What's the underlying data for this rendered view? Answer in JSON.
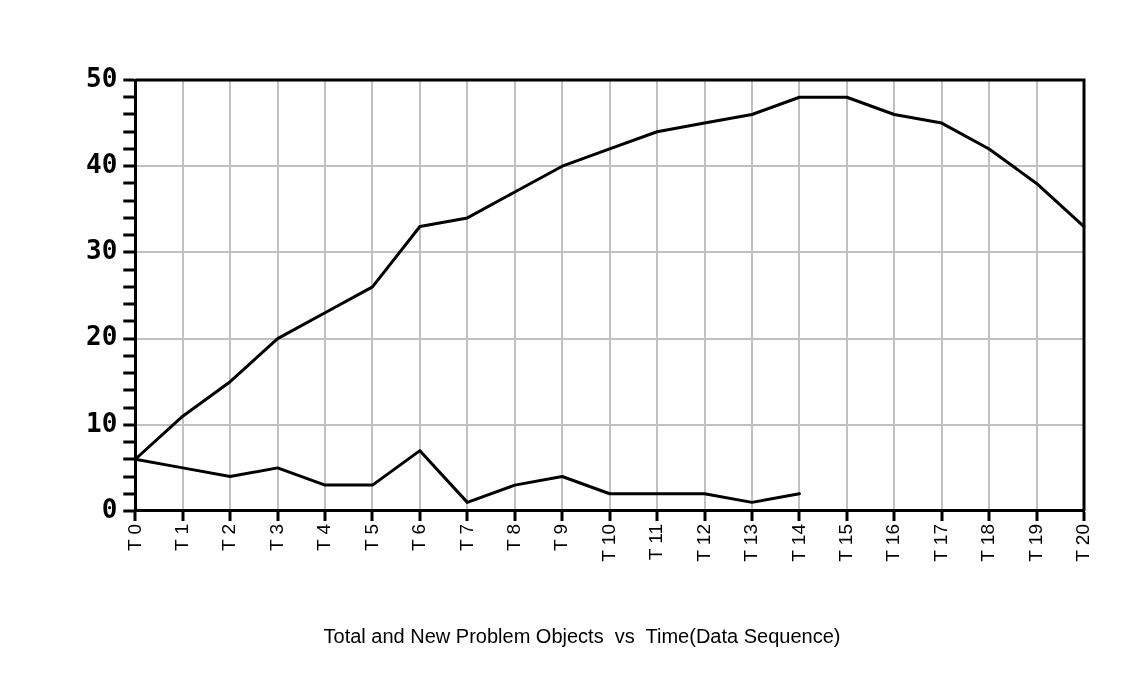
{
  "chart_data": {
    "type": "line",
    "title": "Total and New Problem Objects  vs  Time(Data Sequence)",
    "categories": [
      "T 0",
      "T 1",
      "T 2",
      "T 3",
      "T 4",
      "T 5",
      "T 6",
      "T 7",
      "T 8",
      "T 9",
      "T 10",
      "T 11",
      "T 12",
      "T 13",
      "T 14",
      "T 15",
      "T 16",
      "T 17",
      "T 18",
      "T 19",
      "T 20"
    ],
    "series": [
      {
        "color": "#000000",
        "values": [
          6,
          11,
          15,
          20,
          23,
          26,
          33,
          34,
          37,
          40,
          42,
          44,
          45,
          46,
          48,
          48,
          46,
          45,
          42,
          38,
          33
        ]
      },
      {
        "color": "#000000",
        "values": [
          6,
          5,
          4,
          5,
          3,
          3,
          7,
          1,
          3,
          4,
          2,
          2,
          2,
          1,
          2,
          null,
          null,
          null,
          null,
          null,
          null
        ]
      }
    ],
    "ylim": [
      0,
      50
    ],
    "yticks": [
      0,
      {
        "value": 2,
        "label": null
      },
      {
        "value": 4,
        "label": null
      },
      {
        "value": 6,
        "label": null
      },
      {
        "value": 8,
        "label": null
      },
      10,
      {
        "value": 12,
        "label": null
      },
      {
        "value": 14,
        "label": null
      },
      {
        "value": 16,
        "label": null
      },
      {
        "value": 18,
        "label": null
      },
      20,
      {
        "value": 22,
        "label": null
      },
      {
        "value": 24,
        "label": null
      },
      {
        "value": 26,
        "label": null
      },
      {
        "value": 28,
        "label": null
      },
      30,
      {
        "value": 32,
        "label": null
      },
      {
        "value": 34,
        "label": null
      },
      {
        "value": 36,
        "label": null
      },
      {
        "value": 38,
        "label": null
      },
      40,
      {
        "value": 42,
        "label": null
      },
      {
        "value": 44,
        "label": null
      },
      {
        "value": 46,
        "label": null
      },
      {
        "value": 48,
        "label": null
      },
      50
    ],
    "grid": true,
    "legend": false,
    "marker": "none",
    "line_style": "solid"
  }
}
